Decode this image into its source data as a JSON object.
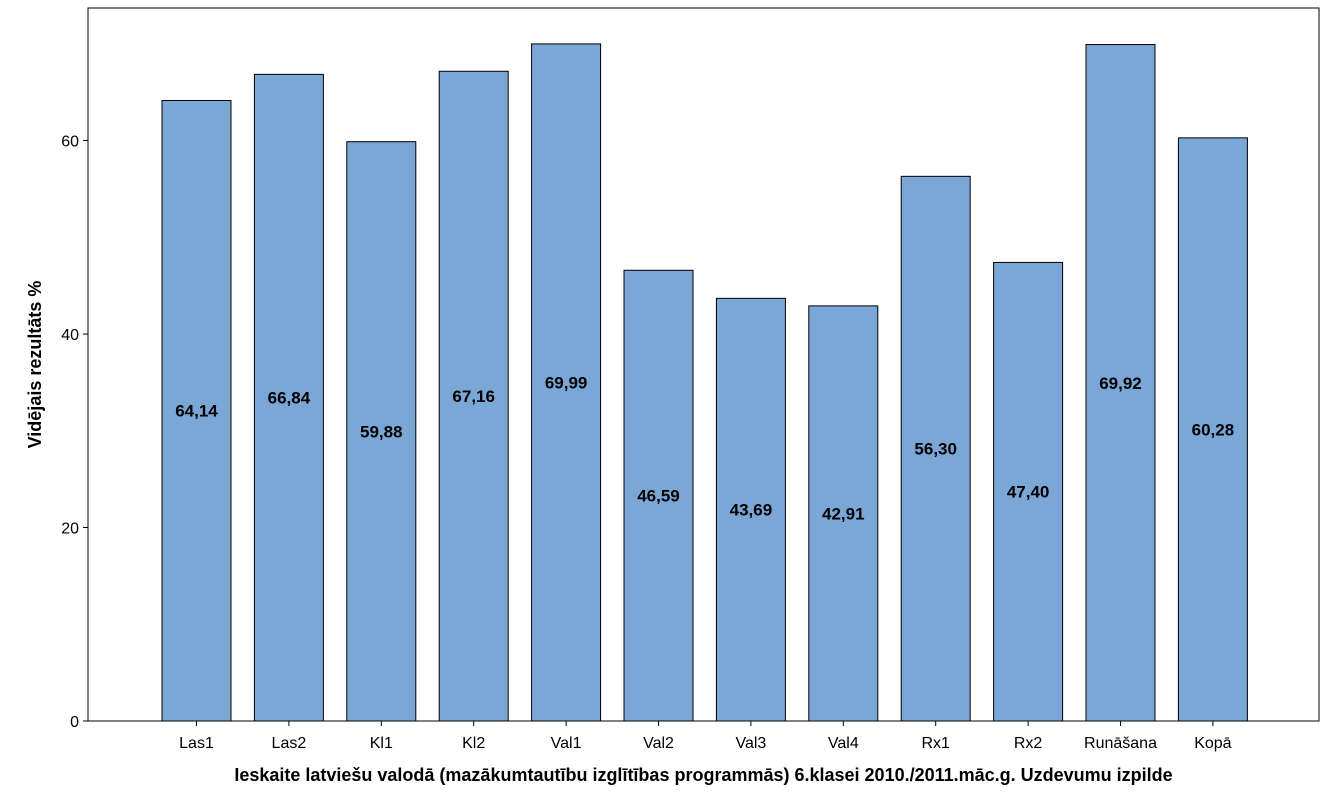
{
  "chart_data": {
    "type": "bar",
    "title": "",
    "xlabel": "Ieskaite latviešu valodā (mazākumtautību izglītības programmās) 6.klasei 2010./2011.māc.g. Uzdevumu izpilde",
    "ylabel": "Vidējais rezultāts %",
    "categories": [
      "Las1",
      "Las2",
      "Kl1",
      "Kl2",
      "Val1",
      "Val2",
      "Val3",
      "Val4",
      "Rx1",
      "Rx2",
      "Runāšana",
      "Kopā"
    ],
    "values": [
      64.14,
      66.84,
      59.88,
      67.16,
      69.99,
      46.59,
      43.69,
      42.91,
      56.3,
      47.4,
      69.92,
      60.28
    ],
    "value_labels": [
      "64,14",
      "66,84",
      "59,88",
      "67,16",
      "69,99",
      "46,59",
      "43,69",
      "42,91",
      "56,30",
      "47,40",
      "69,92",
      "60,28"
    ],
    "ylim": [
      0,
      73.7
    ],
    "yticks": [
      0,
      20,
      40,
      60
    ],
    "ytick_labels": [
      "0",
      "20",
      "40",
      "60"
    ],
    "bar_color": "#7ba7d6",
    "bar_edge_color": "#000000",
    "grid": false,
    "legend": "none"
  }
}
